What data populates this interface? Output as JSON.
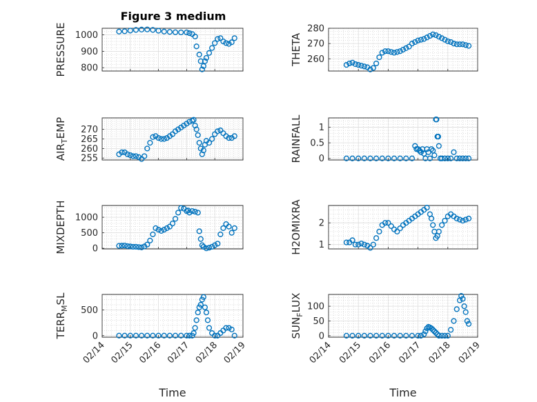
{
  "figure": {
    "title": "Figure 3 medium",
    "xlabel": "Time",
    "xtick_labels": [
      "02/14",
      "02/15",
      "02/16",
      "02/17",
      "02/18",
      "02/19"
    ],
    "marker_color": "#0072BD",
    "grid": true,
    "minor_grid": true
  },
  "chart_data": [
    {
      "type": "scatter",
      "ylabel": "PRESSURE",
      "x": [
        0.6,
        0.8,
        1.0,
        1.2,
        1.4,
        1.6,
        1.8,
        2.0,
        2.2,
        2.4,
        2.6,
        2.8,
        3.0,
        3.1,
        3.2,
        3.3,
        3.35,
        3.45,
        3.5,
        3.55,
        3.6,
        3.65,
        3.7,
        3.8,
        3.9,
        4.0,
        4.1,
        4.2,
        4.3,
        4.4,
        4.5,
        4.6,
        4.7
      ],
      "y": [
        1020,
        1022,
        1026,
        1030,
        1032,
        1033,
        1030,
        1025,
        1020,
        1018,
        1016,
        1015,
        1015,
        1010,
        1005,
        990,
        930,
        880,
        840,
        790,
        810,
        840,
        860,
        890,
        920,
        950,
        975,
        980,
        960,
        950,
        945,
        955,
        980
      ],
      "ylim": [
        780,
        1040
      ],
      "yticks": [
        800,
        900,
        1000
      ]
    },
    {
      "type": "scatter",
      "ylabel": "THETA",
      "x": [
        0.6,
        0.7,
        0.8,
        0.9,
        1.0,
        1.1,
        1.2,
        1.3,
        1.4,
        1.5,
        1.6,
        1.7,
        1.8,
        1.9,
        2.0,
        2.1,
        2.2,
        2.3,
        2.4,
        2.5,
        2.6,
        2.7,
        2.8,
        2.9,
        3.0,
        3.1,
        3.2,
        3.3,
        3.4,
        3.5,
        3.6,
        3.7,
        3.8,
        3.9,
        4.0,
        4.1,
        4.2,
        4.3,
        4.4,
        4.5,
        4.6,
        4.7
      ],
      "y": [
        256,
        257,
        257.5,
        256.5,
        256,
        255.5,
        255,
        254.5,
        253,
        254,
        257,
        261,
        264,
        265,
        265,
        264.5,
        264,
        264.5,
        265,
        266,
        267,
        268,
        270,
        271,
        272,
        272.5,
        273,
        274,
        275,
        276,
        275.5,
        274.5,
        273.5,
        272.5,
        271.5,
        271,
        270,
        269.5,
        269.5,
        269.5,
        269,
        268.5
      ],
      "ylim": [
        252,
        280
      ],
      "yticks": [
        260,
        270,
        280
      ]
    },
    {
      "type": "scatter",
      "ylabel": "AIR",
      "ylabel_sub": "T",
      "ylabel_tail": "EMP",
      "x": [
        0.6,
        0.7,
        0.8,
        0.9,
        1.0,
        1.1,
        1.2,
        1.3,
        1.4,
        1.5,
        1.6,
        1.7,
        1.8,
        1.9,
        2.0,
        2.1,
        2.2,
        2.3,
        2.4,
        2.5,
        2.6,
        2.7,
        2.8,
        2.9,
        3.0,
        3.1,
        3.2,
        3.25,
        3.3,
        3.35,
        3.4,
        3.45,
        3.5,
        3.55,
        3.6,
        3.65,
        3.7,
        3.8,
        3.9,
        4.0,
        4.1,
        4.2,
        4.3,
        4.4,
        4.5,
        4.6,
        4.7
      ],
      "y": [
        257,
        258,
        258,
        257,
        256.5,
        256,
        256,
        255.5,
        254.5,
        256,
        260,
        263,
        266,
        266.5,
        265.5,
        265,
        265,
        265.5,
        266.5,
        267.5,
        269,
        270,
        271,
        272,
        273,
        274,
        274.5,
        275,
        272,
        270,
        267,
        263,
        260,
        257,
        259,
        262,
        264,
        263,
        265,
        267.5,
        269,
        269.5,
        268,
        266.5,
        265.5,
        265.5,
        266.5
      ],
      "ylim": [
        254,
        276
      ],
      "yticks": [
        255,
        260,
        265,
        270
      ]
    },
    {
      "type": "scatter",
      "ylabel": "RAINFALL",
      "x": [
        0.6,
        0.8,
        1.0,
        1.2,
        1.4,
        1.6,
        1.8,
        2.0,
        2.2,
        2.4,
        2.6,
        2.8,
        2.9,
        2.95,
        3.0,
        3.05,
        3.1,
        3.15,
        3.2,
        3.25,
        3.3,
        3.35,
        3.4,
        3.45,
        3.5,
        3.55,
        3.6,
        3.62,
        3.65,
        3.68,
        3.7,
        3.75,
        3.8,
        3.9,
        4.0,
        4.1,
        4.2,
        4.3,
        4.4,
        4.5,
        4.6,
        4.7
      ],
      "y": [
        0,
        0,
        0,
        0,
        0,
        0,
        0,
        0,
        0,
        0,
        0,
        0,
        0.4,
        0.3,
        0.3,
        0.25,
        0.2,
        0.3,
        0.15,
        0,
        0.3,
        0.2,
        0,
        0.3,
        0.25,
        0.1,
        1.25,
        1.25,
        0.7,
        0.7,
        0.4,
        0,
        0,
        0,
        0,
        0,
        0.2,
        0,
        0,
        0,
        0,
        0
      ],
      "ylim": [
        -0.05,
        1.3
      ],
      "yticks": [
        0,
        0.5,
        1
      ]
    },
    {
      "type": "scatter",
      "ylabel": "MIXDEPTH",
      "x": [
        0.6,
        0.7,
        0.8,
        0.9,
        1.0,
        1.1,
        1.2,
        1.3,
        1.4,
        1.5,
        1.6,
        1.7,
        1.8,
        1.9,
        2.0,
        2.1,
        2.2,
        2.3,
        2.4,
        2.5,
        2.6,
        2.7,
        2.8,
        2.9,
        3.0,
        3.05,
        3.1,
        3.2,
        3.3,
        3.4,
        3.45,
        3.5,
        3.55,
        3.6,
        3.7,
        3.8,
        3.9,
        4.0,
        4.1,
        4.2,
        4.3,
        4.4,
        4.5,
        4.6,
        4.7
      ],
      "y": [
        80,
        85,
        90,
        70,
        60,
        50,
        50,
        40,
        30,
        60,
        120,
        250,
        450,
        650,
        600,
        560,
        600,
        650,
        700,
        800,
        950,
        1150,
        1300,
        1280,
        1200,
        1220,
        1150,
        1200,
        1180,
        1150,
        550,
        300,
        100,
        50,
        0,
        20,
        50,
        100,
        150,
        450,
        650,
        780,
        700,
        500,
        650
      ],
      "ylim": [
        -20,
        1380
      ],
      "yticks": [
        0,
        500,
        1000
      ]
    },
    {
      "type": "scatter",
      "ylabel": "H2OMIXRA",
      "x": [
        0.6,
        0.7,
        0.8,
        0.9,
        1.0,
        1.1,
        1.2,
        1.3,
        1.4,
        1.5,
        1.6,
        1.7,
        1.8,
        1.9,
        2.0,
        2.1,
        2.2,
        2.3,
        2.4,
        2.5,
        2.6,
        2.7,
        2.8,
        2.9,
        3.0,
        3.1,
        3.2,
        3.3,
        3.4,
        3.45,
        3.5,
        3.55,
        3.6,
        3.65,
        3.7,
        3.8,
        3.9,
        4.0,
        4.1,
        4.2,
        4.3,
        4.4,
        4.5,
        4.6,
        4.7
      ],
      "y": [
        1.1,
        1.1,
        1.2,
        1.0,
        1.0,
        1.05,
        1.0,
        0.95,
        0.85,
        1.0,
        1.3,
        1.6,
        1.9,
        2.0,
        2.0,
        1.85,
        1.7,
        1.6,
        1.75,
        1.9,
        2.0,
        2.1,
        2.2,
        2.3,
        2.4,
        2.5,
        2.6,
        2.7,
        2.4,
        2.2,
        1.9,
        1.6,
        1.3,
        1.4,
        1.6,
        1.9,
        2.1,
        2.3,
        2.4,
        2.3,
        2.2,
        2.15,
        2.1,
        2.15,
        2.2
      ],
      "ylim": [
        0.8,
        2.8
      ],
      "yticks": [
        1,
        2
      ]
    },
    {
      "type": "scatter",
      "ylabel": "TERR",
      "ylabel_sub": "M",
      "ylabel_tail": "SL",
      "x": [
        0.6,
        0.8,
        1.0,
        1.2,
        1.4,
        1.6,
        1.8,
        2.0,
        2.2,
        2.4,
        2.6,
        2.8,
        3.0,
        3.1,
        3.2,
        3.25,
        3.3,
        3.35,
        3.4,
        3.45,
        3.5,
        3.55,
        3.6,
        3.65,
        3.7,
        3.75,
        3.8,
        3.9,
        4.0,
        4.1,
        4.2,
        4.3,
        4.4,
        4.5,
        4.6,
        4.7
      ],
      "y": [
        0,
        0,
        0,
        0,
        0,
        0,
        0,
        0,
        0,
        0,
        0,
        0,
        0,
        0,
        0,
        50,
        150,
        300,
        450,
        550,
        600,
        700,
        750,
        550,
        450,
        300,
        150,
        50,
        0,
        0,
        50,
        100,
        150,
        150,
        120,
        0
      ],
      "ylim": [
        -30,
        800
      ],
      "yticks": [
        0,
        500
      ]
    },
    {
      "type": "scatter",
      "ylabel": "SUN",
      "ylabel_sub": "F",
      "ylabel_tail": "LUX",
      "x": [
        0.6,
        0.8,
        1.0,
        1.2,
        1.4,
        1.6,
        1.8,
        2.0,
        2.2,
        2.4,
        2.6,
        2.8,
        3.0,
        3.1,
        3.2,
        3.25,
        3.3,
        3.35,
        3.4,
        3.45,
        3.5,
        3.55,
        3.6,
        3.65,
        3.7,
        3.8,
        3.9,
        4.0,
        4.1,
        4.2,
        4.3,
        4.4,
        4.45,
        4.5,
        4.55,
        4.6,
        4.65,
        4.7
      ],
      "y": [
        0,
        0,
        0,
        0,
        0,
        0,
        0,
        0,
        0,
        0,
        0,
        0,
        0,
        0,
        5,
        15,
        25,
        30,
        28,
        25,
        20,
        15,
        10,
        5,
        0,
        0,
        0,
        0,
        20,
        50,
        90,
        120,
        135,
        125,
        100,
        80,
        50,
        40
      ],
      "ylim": [
        -5,
        140
      ],
      "yticks": [
        0,
        50,
        100
      ]
    }
  ]
}
